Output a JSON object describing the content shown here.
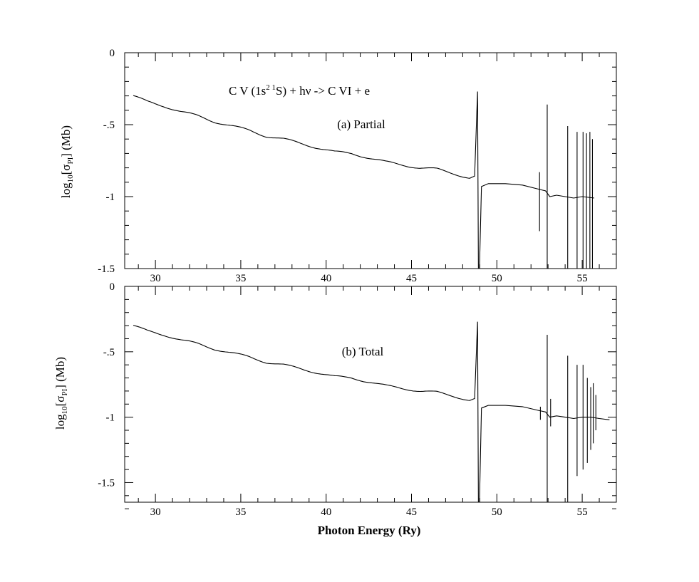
{
  "chart_data": [
    {
      "type": "line",
      "panel": "(a) Partial",
      "title": "C V (1s² ¹S) + hν -> C VI + e",
      "annotation": "(a) Partial",
      "xlabel": "",
      "ylabel": {
        "pre": "log",
        "sub1": "10",
        "mid": "[σ",
        "sub2": "PI",
        "post": "] (Mb)"
      },
      "xlim": [
        28.2,
        57.0
      ],
      "ylim": [
        -1.5,
        0
      ],
      "x_ticks": [
        30,
        35,
        40,
        45,
        50,
        55
      ],
      "x_tick_labels": [
        "30",
        "35",
        "40",
        "45",
        "50",
        "55"
      ],
      "y_ticks": [
        0,
        -0.5,
        -1,
        -1.5
      ],
      "y_tick_labels": [
        "0",
        "-.5",
        "-1",
        "-1.5"
      ],
      "background_points": [
        [
          28.7,
          -0.3
        ],
        [
          29.5,
          -0.34
        ],
        [
          30.5,
          -0.37
        ],
        [
          31.5,
          -0.41
        ],
        [
          32.5,
          -0.44
        ],
        [
          33.5,
          -0.48
        ],
        [
          34.5,
          -0.51
        ],
        [
          35.5,
          -0.54
        ],
        [
          36.5,
          -0.58
        ],
        [
          37.5,
          -0.6
        ],
        [
          38.5,
          -0.63
        ],
        [
          39.5,
          -0.66
        ],
        [
          40.5,
          -0.69
        ],
        [
          41.5,
          -0.7
        ],
        [
          42.5,
          -0.73
        ],
        [
          43.5,
          -0.76
        ],
        [
          44.5,
          -0.78
        ],
        [
          45.5,
          -0.8
        ],
        [
          46.5,
          -0.81
        ],
        [
          47.5,
          -0.84
        ],
        [
          48.4,
          -0.87
        ],
        [
          48.7,
          -0.86
        ]
      ],
      "post_edge_points": [
        [
          49.1,
          -0.93
        ],
        [
          49.5,
          -0.91
        ],
        [
          50.5,
          -0.91
        ],
        [
          51.5,
          -0.92
        ],
        [
          52.5,
          -0.95
        ],
        [
          52.85,
          -0.96
        ],
        [
          53.1,
          -1.0
        ],
        [
          53.5,
          -0.99
        ],
        [
          54.0,
          -1.0
        ],
        [
          54.5,
          -1.01
        ],
        [
          55.0,
          -1.0
        ],
        [
          55.7,
          -1.01
        ]
      ],
      "resonances": [
        {
          "x": 48.92,
          "top": -0.27,
          "bottom": -1.5
        },
        {
          "x": 52.5,
          "top": -0.83,
          "bottom": -1.24
        },
        {
          "x": 52.95,
          "top": -0.36,
          "bottom": -1.5
        },
        {
          "x": 54.15,
          "top": -0.51,
          "bottom": -1.5
        },
        {
          "x": 54.7,
          "top": -0.55,
          "bottom": -1.5
        },
        {
          "x": 55.05,
          "top": -0.55,
          "bottom": -1.5
        },
        {
          "x": 55.25,
          "top": -0.56,
          "bottom": -1.5
        },
        {
          "x": 55.45,
          "top": -0.55,
          "bottom": -1.5
        },
        {
          "x": 55.6,
          "top": -0.6,
          "bottom": -1.5
        }
      ]
    },
    {
      "type": "line",
      "panel": "(b) Total",
      "title": "",
      "annotation": "(b) Total",
      "xlabel": "Photon Energy (Ry)",
      "ylabel": {
        "pre": "log",
        "sub1": "10",
        "mid": "[σ",
        "sub2": "PI",
        "post": "] (Mb)"
      },
      "xlim": [
        28.2,
        57.0
      ],
      "ylim": [
        -1.65,
        0
      ],
      "x_ticks": [
        30,
        35,
        40,
        45,
        50,
        55
      ],
      "x_tick_labels": [
        "30",
        "35",
        "40",
        "45",
        "50",
        "55"
      ],
      "y_ticks": [
        0,
        -0.5,
        -1,
        -1.5
      ],
      "y_tick_labels": [
        "0",
        "-.5",
        "-1",
        "-1.5"
      ],
      "background_points": [
        [
          28.7,
          -0.3
        ],
        [
          29.5,
          -0.34
        ],
        [
          30.5,
          -0.37
        ],
        [
          31.5,
          -0.41
        ],
        [
          32.5,
          -0.44
        ],
        [
          33.5,
          -0.48
        ],
        [
          34.5,
          -0.51
        ],
        [
          35.5,
          -0.54
        ],
        [
          36.5,
          -0.58
        ],
        [
          37.5,
          -0.6
        ],
        [
          38.5,
          -0.63
        ],
        [
          39.5,
          -0.66
        ],
        [
          40.5,
          -0.69
        ],
        [
          41.5,
          -0.7
        ],
        [
          42.5,
          -0.73
        ],
        [
          43.5,
          -0.76
        ],
        [
          44.5,
          -0.78
        ],
        [
          45.5,
          -0.8
        ],
        [
          46.5,
          -0.81
        ],
        [
          47.5,
          -0.84
        ],
        [
          48.4,
          -0.87
        ],
        [
          48.7,
          -0.86
        ]
      ],
      "post_edge_points": [
        [
          49.1,
          -0.93
        ],
        [
          49.5,
          -0.91
        ],
        [
          50.5,
          -0.91
        ],
        [
          51.5,
          -0.92
        ],
        [
          52.5,
          -0.95
        ],
        [
          52.85,
          -0.96
        ],
        [
          53.1,
          -1.0
        ],
        [
          53.5,
          -0.99
        ],
        [
          54.0,
          -1.0
        ],
        [
          54.5,
          -1.01
        ],
        [
          55.0,
          -1.0
        ],
        [
          55.5,
          -1.0
        ],
        [
          56.0,
          -1.01
        ],
        [
          56.6,
          -1.02
        ]
      ],
      "resonances": [
        {
          "x": 48.92,
          "top": -0.27,
          "bottom": -1.65
        },
        {
          "x": 52.55,
          "top": -0.92,
          "bottom": -1.02
        },
        {
          "x": 52.95,
          "top": -0.37,
          "bottom": -1.65
        },
        {
          "x": 53.15,
          "top": -0.86,
          "bottom": -1.07
        },
        {
          "x": 54.15,
          "top": -0.53,
          "bottom": -1.65
        },
        {
          "x": 54.7,
          "top": -0.6,
          "bottom": -1.45
        },
        {
          "x": 55.05,
          "top": -0.6,
          "bottom": -1.4
        },
        {
          "x": 55.3,
          "top": -0.7,
          "bottom": -1.35
        },
        {
          "x": 55.5,
          "top": -0.77,
          "bottom": -1.25
        },
        {
          "x": 55.65,
          "top": -0.74,
          "bottom": -1.2
        },
        {
          "x": 55.8,
          "top": -0.83,
          "bottom": -1.1
        }
      ]
    }
  ]
}
